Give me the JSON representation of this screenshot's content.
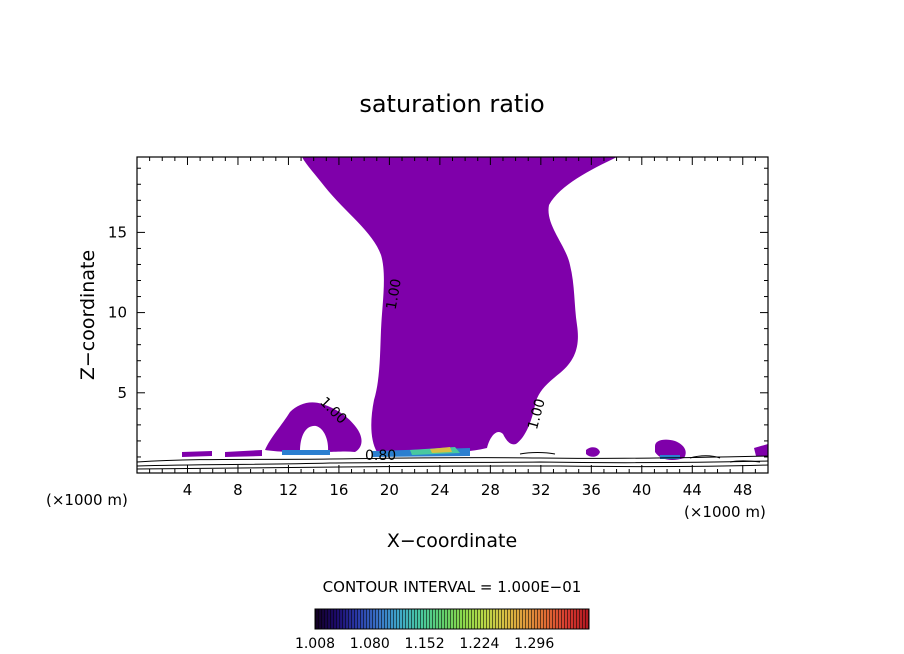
{
  "chart_data": {
    "type": "heatmap",
    "title": "saturation ratio",
    "xlabel": "X−coordinate",
    "ylabel": "Z−coordinate",
    "x_unit_label": "(×1000 m)",
    "y_unit_label": "(×1000 m)",
    "xlim": [
      0,
      50
    ],
    "ylim": [
      0,
      19.7
    ],
    "x_ticks": [
      4,
      8,
      12,
      16,
      20,
      24,
      28,
      32,
      36,
      40,
      44,
      48
    ],
    "y_ticks": [
      5,
      10,
      15
    ],
    "contour_interval_text": "CONTOUR INTERVAL = 1.000E−01",
    "contour_labels": [
      {
        "text": "1.00",
        "x": 20.7,
        "z": 11.1
      },
      {
        "text": "1.00",
        "x": 15.3,
        "z": 3.7
      },
      {
        "text": "1.00",
        "x": 32.0,
        "z": 3.6
      },
      {
        "text": "0.80",
        "x": 19.3,
        "z": 0.8
      }
    ],
    "colorbar": {
      "tick_labels": [
        "1.008",
        "1.080",
        "1.152",
        "1.224",
        "1.296"
      ],
      "colors": [
        "#120020",
        "#1c0a6a",
        "#2a3aa8",
        "#3a74c8",
        "#3fa8c8",
        "#49c8a0",
        "#5fd070",
        "#8ad84c",
        "#b8d848",
        "#d8c044",
        "#e09a3c",
        "#e06a34",
        "#d83a30",
        "#b01820"
      ]
    },
    "fill_color_supersaturated": "#7f00aa"
  }
}
